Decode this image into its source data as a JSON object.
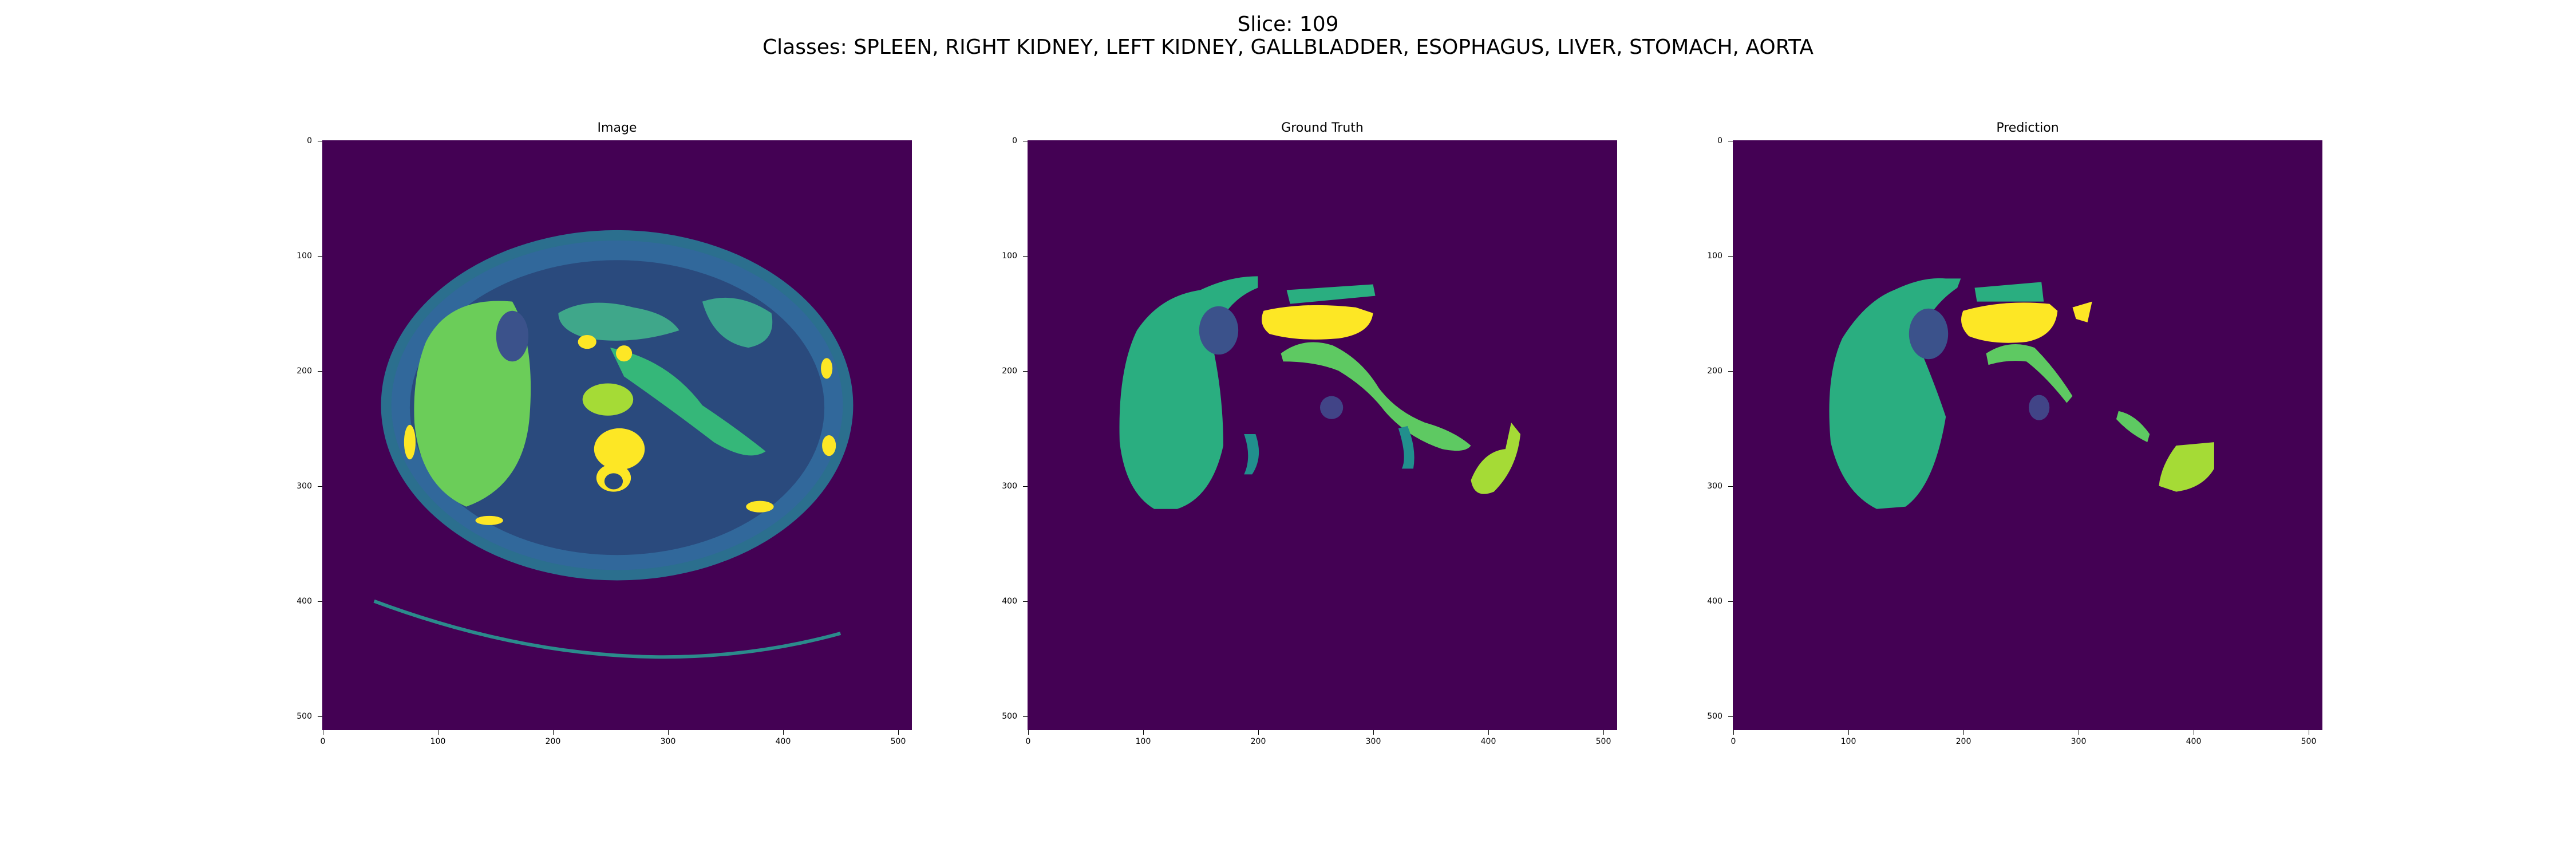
{
  "figure": {
    "slice_label": "Slice: 109",
    "classes_label": "Classes: SPLEEN, RIGHT KIDNEY, LEFT KIDNEY, GALLBLADDER, ESOPHAGUS, LIVER, STOMACH, AORTA"
  },
  "panels": [
    {
      "title": "Image"
    },
    {
      "title": "Ground Truth"
    },
    {
      "title": "Prediction"
    }
  ],
  "axis_ticks": [
    "0",
    "100",
    "200",
    "300",
    "400",
    "500"
  ],
  "colors": {
    "background": "#440154",
    "liver": "#2aae80",
    "kidney": "#3b528b",
    "stomach": "#fde725",
    "aorta": "#5ec962",
    "spleen": "#a5db36",
    "esophagus": "#218f8d",
    "gallbladder": "#414487"
  }
}
